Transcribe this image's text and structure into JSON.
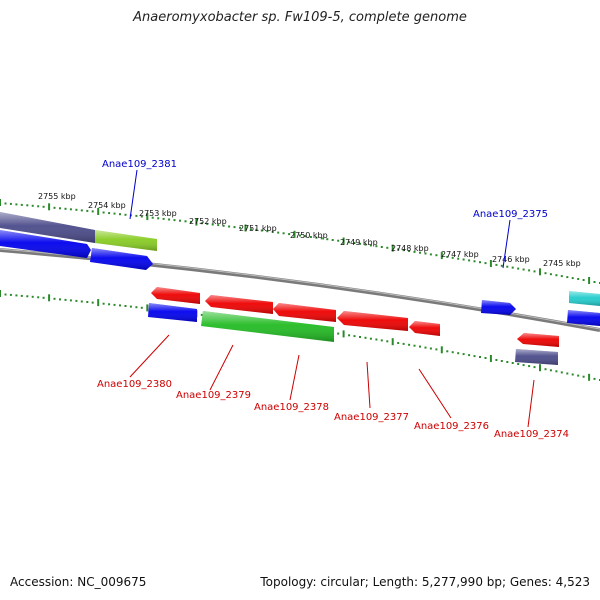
{
  "title": "Anaeromyxobacter sp. Fw109-5, complete genome",
  "footer": {
    "accession": "Accession: NC_009675",
    "summary": "Topology: circular; Length: 5,277,990 bp; Genes: 4,523"
  },
  "colors": {
    "label_forward": "#0000cc",
    "label_reverse": "#cc0000",
    "tick": "#2a8a2a",
    "backbone": "#888888"
  },
  "scale_ticks": [
    "2755 kbp",
    "2754 kbp",
    "2753 kbp",
    "2752 kbp",
    "2751 kbp",
    "2750 kbp",
    "2749 kbp",
    "2748 kbp",
    "2747 kbp",
    "2746 kbp",
    "2745 kbp"
  ],
  "gene_labels": {
    "forward": [
      "Anae109_2381",
      "Anae109_2375"
    ],
    "reverse": [
      "Anae109_2380",
      "Anae109_2379",
      "Anae109_2378",
      "Anae109_2377",
      "Anae109_2376",
      "Anae109_2374"
    ]
  },
  "features": [
    {
      "strand": "forward",
      "color": "#4a4a8a"
    },
    {
      "strand": "forward",
      "color": "#88cc22"
    },
    {
      "strand": "forward",
      "color": "#0000ee"
    },
    {
      "strand": "forward",
      "color": "#0000ee"
    },
    {
      "strand": "forward",
      "color": "#0000ee"
    },
    {
      "strand": "forward",
      "color": "#22cccc"
    },
    {
      "strand": "forward",
      "color": "#0000ee"
    },
    {
      "strand": "reverse",
      "color": "#ee0000"
    },
    {
      "strand": "reverse",
      "color": "#ee0000"
    },
    {
      "strand": "reverse",
      "color": "#ee0000"
    },
    {
      "strand": "reverse",
      "color": "#ee0000"
    },
    {
      "strand": "reverse",
      "color": "#ee0000"
    },
    {
      "strand": "reverse",
      "color": "#ee0000"
    },
    {
      "strand": "reverse",
      "color": "#0000ee"
    },
    {
      "strand": "reverse",
      "color": "#22bb22"
    },
    {
      "strand": "reverse",
      "color": "#4a4a8a"
    }
  ]
}
